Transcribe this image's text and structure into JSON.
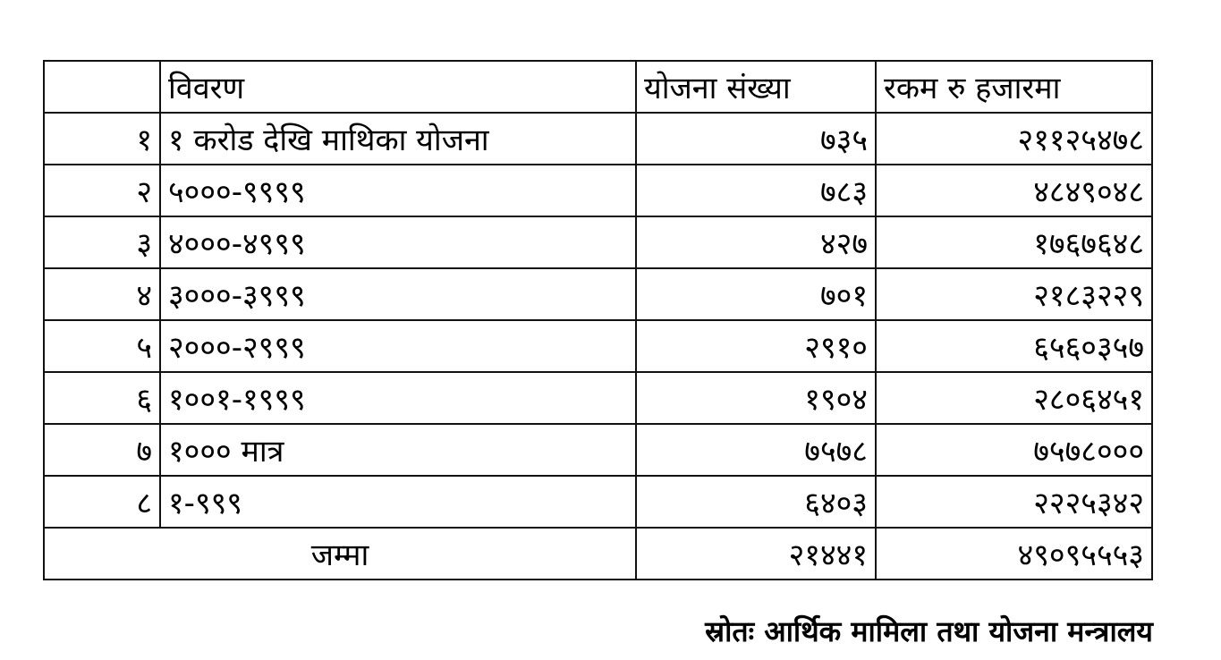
{
  "table": {
    "headers": [
      "",
      "विवरण",
      "योजना संख्या",
      "रकम रु हजारमा"
    ],
    "rows": [
      {
        "sn": "१",
        "description": "१ करोड देखि माथिका योजना",
        "count": "७३५",
        "amount": "२११२५४७८"
      },
      {
        "sn": "२",
        "description": "५०००-९९९९",
        "count": "७८३",
        "amount": "४८४९०४८"
      },
      {
        "sn": "३",
        "description": "४०००-४९९९",
        "count": "४२७",
        "amount": "१७६७६४८"
      },
      {
        "sn": "४",
        "description": "३०००-३९९९",
        "count": "७०१",
        "amount": "२१८३२२९"
      },
      {
        "sn": "५",
        "description": "२०००-२९९९",
        "count": "२९१०",
        "amount": "६५६०३५७"
      },
      {
        "sn": "६",
        "description": "१००१-१९९९",
        "count": "१९०४",
        "amount": "२८०६४५१"
      },
      {
        "sn": "७",
        "description": "१००० मात्र",
        "count": "७५७८",
        "amount": "७५७८०००"
      },
      {
        "sn": "८",
        "description": "१-९९९",
        "count": "६४०३",
        "amount": "२२२५३४२"
      }
    ],
    "total": {
      "label": "जम्मा",
      "count": "२१४४१",
      "amount": "४९०९५५५३"
    }
  },
  "source": "स्रोतः आर्थिक मामिला तथा योजना मन्त्रालय"
}
